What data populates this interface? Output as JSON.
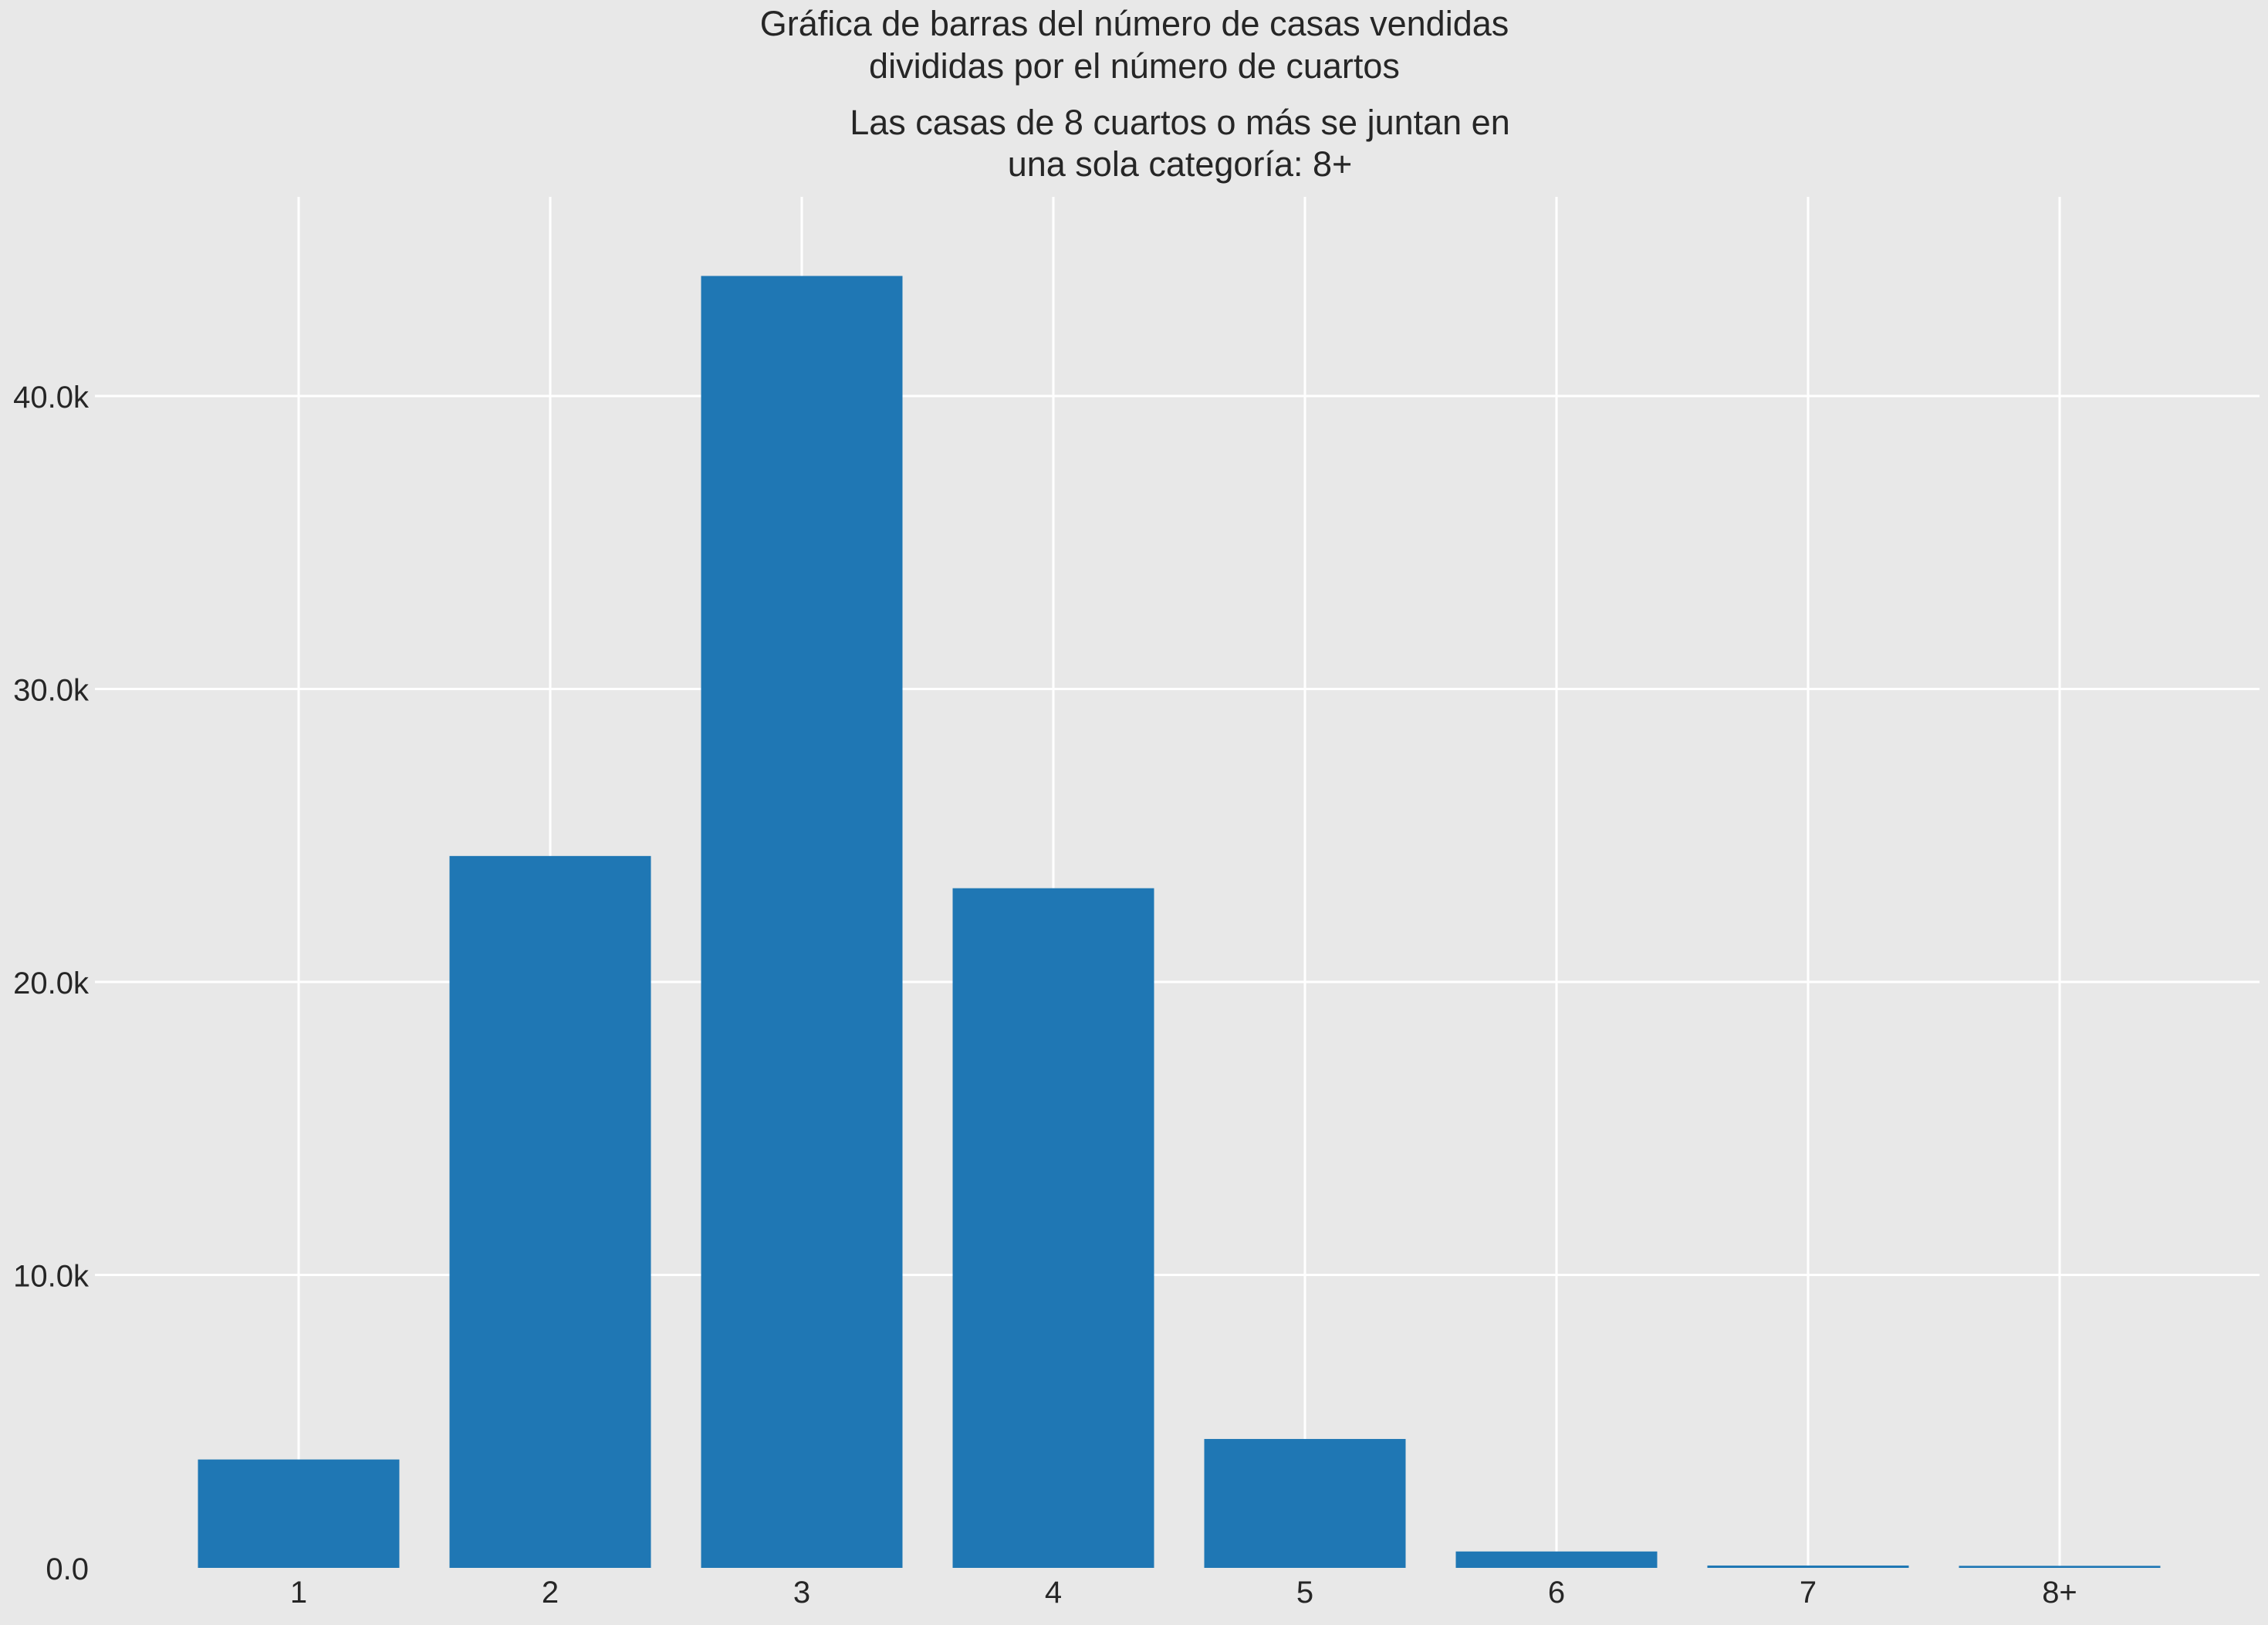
{
  "chart_data": {
    "type": "bar",
    "title_lines": [
      "Gráfica de barras del número de casas vendidas",
      "divididas por el número de cuartos"
    ],
    "subtitle_lines": [
      "Las casas de 8 cuartos o más se juntan en",
      "una sola categoría: 8+"
    ],
    "xlabel": "",
    "ylabel": "",
    "categories": [
      "1",
      "2",
      "3",
      "4",
      "5",
      "6",
      "7",
      "8+"
    ],
    "values": [
      3700,
      24300,
      44100,
      23200,
      4400,
      560,
      80,
      70
    ],
    "ylim": [
      0,
      46800
    ],
    "y_ticks": [
      0,
      10000,
      20000,
      30000,
      40000
    ],
    "y_tick_labels": [
      "0.0",
      "10.0k",
      "20.0k",
      "30.0k",
      "40.0k"
    ],
    "grid": true,
    "colors": {
      "background": "#e8e8e8",
      "bar": "#1f77b4",
      "grid": "#ffffff",
      "text": "#262626"
    }
  }
}
